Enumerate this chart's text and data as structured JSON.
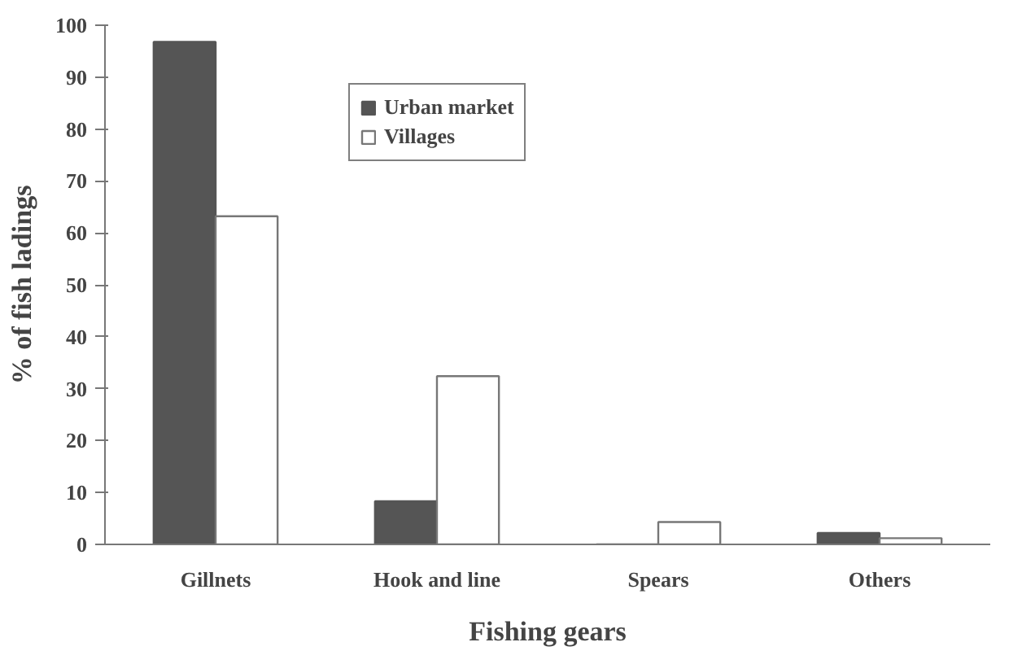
{
  "chart_data": {
    "type": "bar",
    "xlabel": "Fishing gears",
    "ylabel": "% of fish ladings",
    "categories": [
      "Gillnets",
      "Hook and line",
      "Spears",
      "Others"
    ],
    "series": [
      {
        "name": "Urban market",
        "color": "#555555",
        "values": [
          96.8,
          8.3,
          0,
          2.2
        ]
      },
      {
        "name": "Villages",
        "color": "#ffffff",
        "values": [
          63.2,
          32.4,
          4.3,
          1.2
        ]
      }
    ],
    "ylim": [
      0,
      100
    ],
    "yticks": [
      0,
      10,
      20,
      30,
      40,
      50,
      60,
      70,
      80,
      90,
      100
    ],
    "grid": false,
    "legend": "top left"
  }
}
